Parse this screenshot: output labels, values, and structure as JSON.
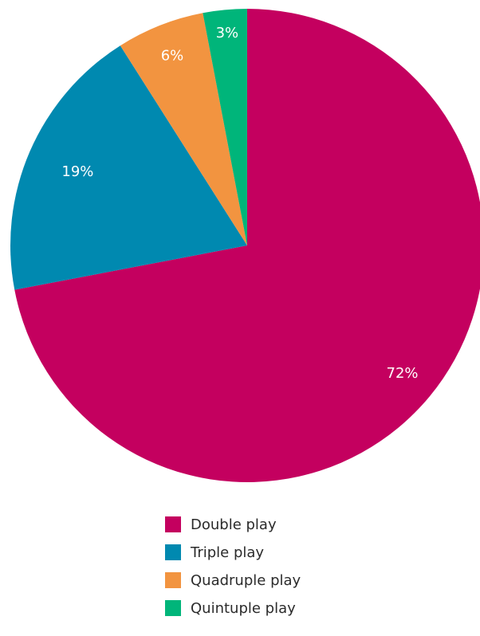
{
  "chart_data": {
    "type": "pie",
    "categories": [
      "Double play",
      "Triple play",
      "Quadruple play",
      "Quintuple play"
    ],
    "values": [
      72,
      19,
      6,
      3
    ],
    "value_labels": [
      "72%",
      "19%",
      "6%",
      "3%"
    ],
    "colors": [
      "#c4005f",
      "#0089b0",
      "#f29440",
      "#00b57a"
    ],
    "start_angle_deg": 0,
    "direction": "clockwise-from-top",
    "legend": {
      "placement": "bottom",
      "entries": [
        "Double play",
        "Triple play",
        "Quadruple play",
        "Quintuple play"
      ]
    },
    "title": ""
  }
}
